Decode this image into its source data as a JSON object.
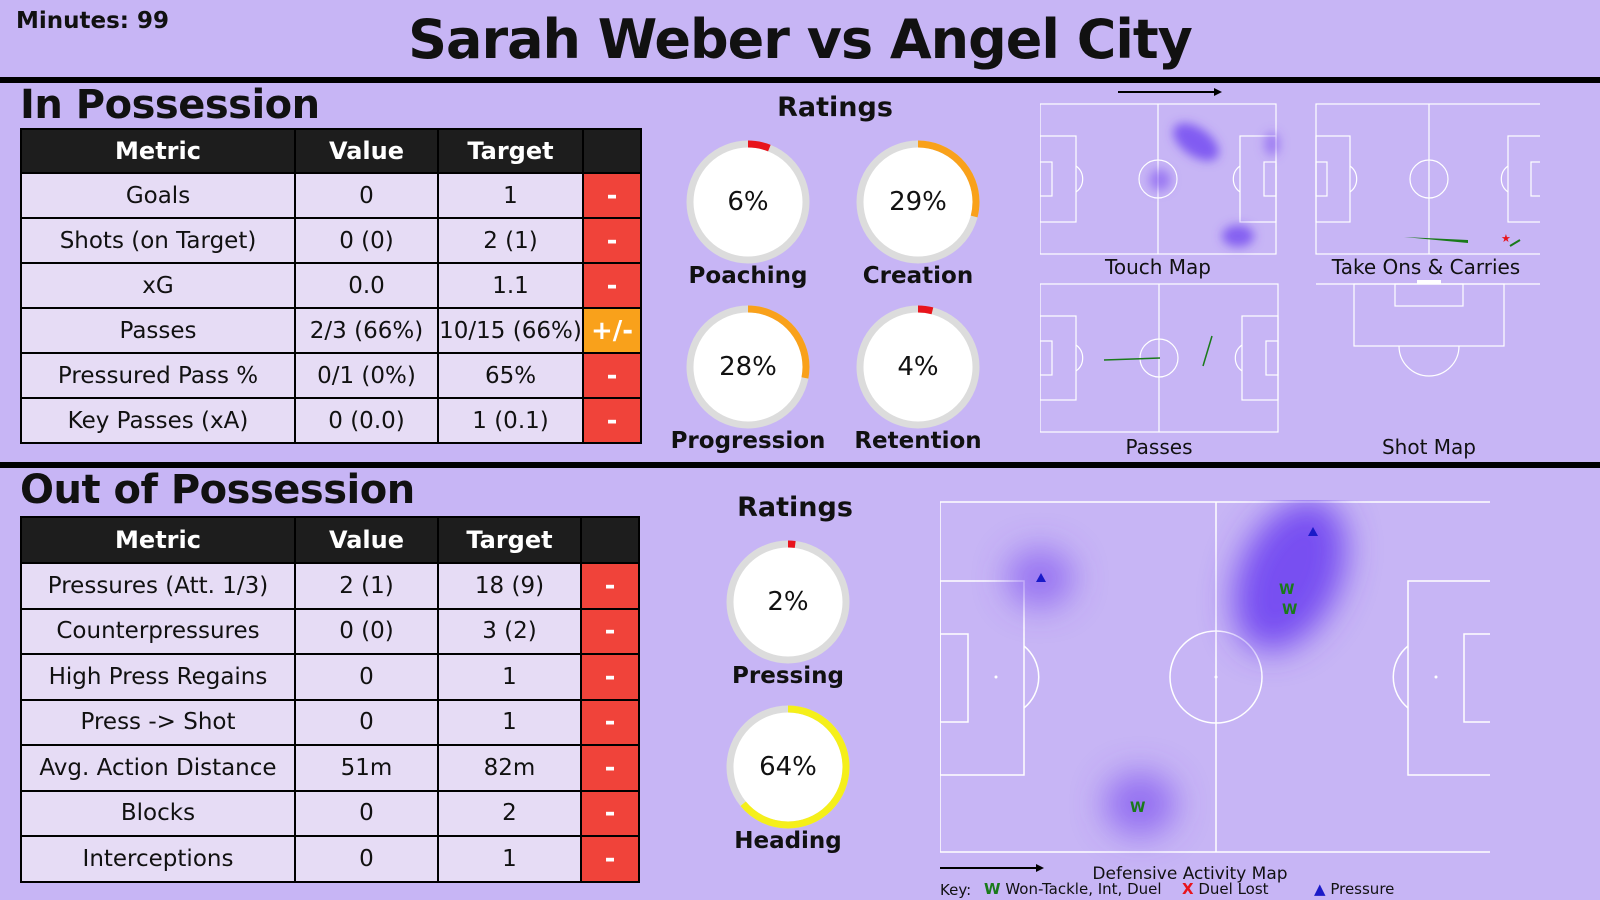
{
  "header": {
    "minutes_label": "Minutes: 99",
    "title": "Sarah Weber vs Angel City"
  },
  "colors": {
    "background": "#c7b5f5",
    "red": "#f0433a",
    "orange": "#f9a11b",
    "yellow": "#f5ef1a",
    "green": "#1a7a1a",
    "blue": "#1a1ac8"
  },
  "in_possession": {
    "title": "In Possession",
    "headers": [
      "Metric",
      "Value",
      "Target",
      ""
    ],
    "rows": [
      {
        "metric": "Goals",
        "value": "0",
        "target": "1",
        "status": "-",
        "status_color": "#f0433a"
      },
      {
        "metric": "Shots (on Target)",
        "value": "0 (0)",
        "target": "2 (1)",
        "status": "-",
        "status_color": "#f0433a"
      },
      {
        "metric": "xG",
        "value": "0.0",
        "target": "1.1",
        "status": "-",
        "status_color": "#f0433a"
      },
      {
        "metric": "Passes",
        "value": "2/3 (66%)",
        "target": "10/15 (66%)",
        "status": "+/-",
        "status_color": "#f9a11b"
      },
      {
        "metric": "Pressured Pass %",
        "value": "0/1 (0%)",
        "target": "65%",
        "status": "-",
        "status_color": "#f0433a"
      },
      {
        "metric": "Key Passes (xA)",
        "value": "0 (0.0)",
        "target": "1 (0.1)",
        "status": "-",
        "status_color": "#f0433a"
      }
    ],
    "ratings_title": "Ratings",
    "ratings": [
      {
        "value": "6%",
        "fraction": 0.06,
        "label": "Poaching",
        "color": "#e8141c"
      },
      {
        "value": "29%",
        "fraction": 0.29,
        "label": "Creation",
        "color": "#f9a11b"
      },
      {
        "value": "28%",
        "fraction": 0.28,
        "label": "Progression",
        "color": "#f9a11b"
      },
      {
        "value": "4%",
        "fraction": 0.04,
        "label": "Retention",
        "color": "#e8141c"
      }
    ],
    "maps": {
      "touch": "Touch Map",
      "take_ons": "Take Ons & Carries",
      "passes": "Passes",
      "shots": "Shot Map"
    }
  },
  "out_of_possession": {
    "title": "Out of Possession",
    "headers": [
      "Metric",
      "Value",
      "Target",
      ""
    ],
    "rows": [
      {
        "metric": "Pressures (Att. 1/3)",
        "value": "2 (1)",
        "target": "18 (9)",
        "status": "-",
        "status_color": "#f0433a"
      },
      {
        "metric": "Counterpressures",
        "value": "0 (0)",
        "target": "3 (2)",
        "status": "-",
        "status_color": "#f0433a"
      },
      {
        "metric": "High Press Regains",
        "value": "0",
        "target": "1",
        "status": "-",
        "status_color": "#f0433a"
      },
      {
        "metric": "Press -> Shot",
        "value": "0",
        "target": "1",
        "status": "-",
        "status_color": "#f0433a"
      },
      {
        "metric": "Avg. Action Distance",
        "value": "51m",
        "target": "82m",
        "status": "-",
        "status_color": "#f0433a"
      },
      {
        "metric": "Blocks",
        "value": "0",
        "target": "2",
        "status": "-",
        "status_color": "#f0433a"
      },
      {
        "metric": "Interceptions",
        "value": "0",
        "target": "1",
        "status": "-",
        "status_color": "#f0433a"
      }
    ],
    "ratings_title": "Ratings",
    "ratings": [
      {
        "value": "2%",
        "fraction": 0.02,
        "label": "Pressing",
        "color": "#e8141c"
      },
      {
        "value": "64%",
        "fraction": 0.64,
        "label": "Heading",
        "color": "#f5ef1a"
      }
    ],
    "map_title": "Defensive Activity Map",
    "won_marker": "W",
    "lost_marker": "X",
    "key": {
      "label": "Key:",
      "won": "Won-Tackle, Int, Duel",
      "lost": "Duel Lost",
      "pressure": "Pressure"
    }
  }
}
